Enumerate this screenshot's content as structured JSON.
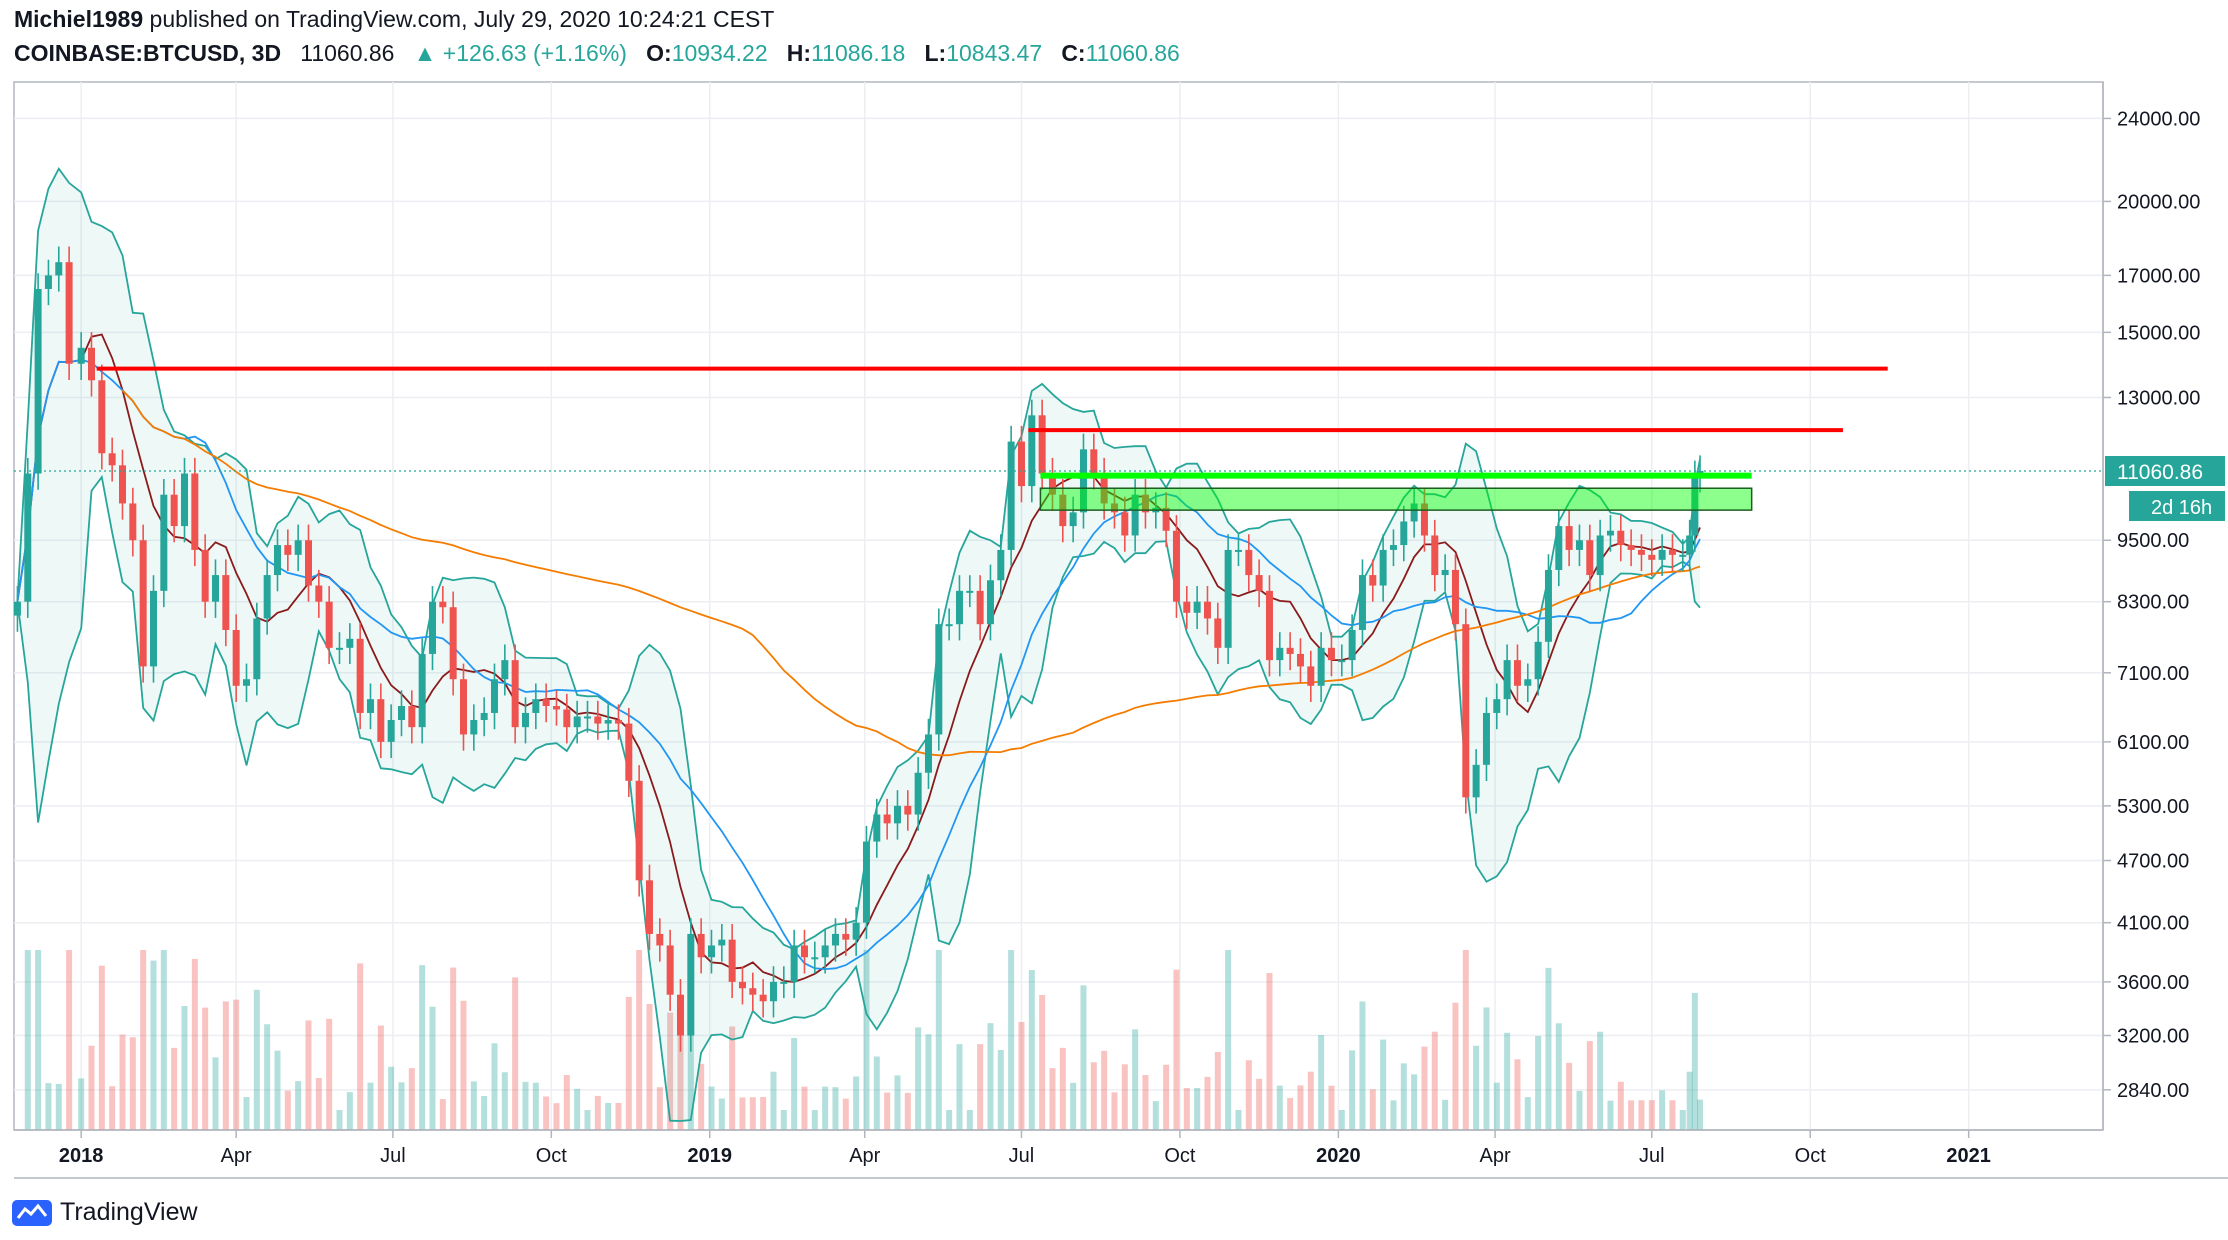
{
  "header": {
    "author": "Michiel1989",
    "published_text": "published on TradingView.com, July 29, 2020 10:24:21 CEST",
    "symbol": "COINBASE:BTCUSD, 3D",
    "last": "11060.86",
    "change": "▲ +126.63 (+1.16%)",
    "o_label": "O:",
    "o_value": "10934.22",
    "h_label": "H:",
    "h_value": "11086.18",
    "l_label": "L:",
    "l_value": "10843.47",
    "c_label": "C:",
    "c_value": "11060.86"
  },
  "footer": {
    "brand": "TradingView"
  },
  "colors": {
    "up": "#26a69a",
    "down": "#ef5350",
    "ma_short": "#8b1a1a",
    "ma_mid": "#2196f3",
    "ma_long": "#f57c00",
    "bollinger": "#26a69a",
    "resistance": "#ff0000",
    "support_zone": "#00ff00"
  },
  "chart_data": {
    "type": "candlestick",
    "symbol": "COINBASE:BTCUSD",
    "interval": "3D",
    "price_scale": "log",
    "y_ticks": [
      2840,
      3200,
      3600,
      4100,
      4700,
      5300,
      6100,
      7100,
      8300,
      9500,
      11060.86,
      13000,
      15000,
      17000,
      20000,
      24000
    ],
    "y_tick_labels": [
      "2840.00",
      "3200.00",
      "3600.00",
      "4100.00",
      "4700.00",
      "5300.00",
      "6100.00",
      "7100.00",
      "8300.00",
      "9500.00",
      "11060.86",
      "13000.00",
      "15000.00",
      "17000.00",
      "20000.00",
      "24000.00"
    ],
    "price_label": "11060.86",
    "countdown_label": "2d 16h",
    "x_ticks": [
      {
        "date": "2018-01-01",
        "label": "2018",
        "bold": true
      },
      {
        "date": "2018-04-01",
        "label": "Apr",
        "bold": false
      },
      {
        "date": "2018-07-01",
        "label": "Jul",
        "bold": false
      },
      {
        "date": "2018-10-01",
        "label": "Oct",
        "bold": false
      },
      {
        "date": "2019-01-01",
        "label": "2019",
        "bold": true
      },
      {
        "date": "2019-04-01",
        "label": "Apr",
        "bold": false
      },
      {
        "date": "2019-07-01",
        "label": "Jul",
        "bold": false
      },
      {
        "date": "2019-10-01",
        "label": "Oct",
        "bold": false
      },
      {
        "date": "2020-01-01",
        "label": "2020",
        "bold": true
      },
      {
        "date": "2020-04-01",
        "label": "Apr",
        "bold": false
      },
      {
        "date": "2020-07-01",
        "label": "Jul",
        "bold": false
      },
      {
        "date": "2020-10-01",
        "label": "Oct",
        "bold": false
      },
      {
        "date": "2021-01-01",
        "label": "2021",
        "bold": true
      }
    ],
    "x_range": [
      "2017-11-23",
      "2021-03-20"
    ],
    "y_range": [
      2600,
      26000
    ],
    "grid": true,
    "close_series": [
      [
        "2017-11-25",
        8300
      ],
      [
        "2017-12-01",
        11000
      ],
      [
        "2017-12-07",
        16500
      ],
      [
        "2017-12-13",
        17000
      ],
      [
        "2017-12-19",
        17500
      ],
      [
        "2017-12-25",
        14000
      ],
      [
        "2018-01-01",
        14500
      ],
      [
        "2018-01-07",
        13500
      ],
      [
        "2018-01-13",
        11500
      ],
      [
        "2018-01-19",
        11200
      ],
      [
        "2018-01-25",
        10300
      ],
      [
        "2018-01-31",
        9500
      ],
      [
        "2018-02-06",
        7200
      ],
      [
        "2018-02-12",
        8500
      ],
      [
        "2018-02-18",
        10500
      ],
      [
        "2018-02-24",
        9800
      ],
      [
        "2018-03-02",
        11000
      ],
      [
        "2018-03-08",
        9300
      ],
      [
        "2018-03-14",
        8300
      ],
      [
        "2018-03-20",
        8800
      ],
      [
        "2018-03-26",
        7800
      ],
      [
        "2018-04-01",
        6900
      ],
      [
        "2018-04-07",
        7000
      ],
      [
        "2018-04-13",
        8000
      ],
      [
        "2018-04-19",
        8800
      ],
      [
        "2018-04-25",
        9400
      ],
      [
        "2018-05-01",
        9200
      ],
      [
        "2018-05-07",
        9500
      ],
      [
        "2018-05-13",
        8600
      ],
      [
        "2018-05-19",
        8300
      ],
      [
        "2018-05-25",
        7500
      ],
      [
        "2018-05-31",
        7500
      ],
      [
        "2018-06-06",
        7650
      ],
      [
        "2018-06-12",
        6500
      ],
      [
        "2018-06-18",
        6700
      ],
      [
        "2018-06-24",
        6100
      ],
      [
        "2018-06-30",
        6400
      ],
      [
        "2018-07-06",
        6600
      ],
      [
        "2018-07-12",
        6300
      ],
      [
        "2018-07-18",
        7400
      ],
      [
        "2018-07-24",
        8300
      ],
      [
        "2018-07-30",
        8200
      ],
      [
        "2018-08-05",
        7000
      ],
      [
        "2018-08-11",
        6200
      ],
      [
        "2018-08-17",
        6400
      ],
      [
        "2018-08-23",
        6500
      ],
      [
        "2018-08-29",
        7000
      ],
      [
        "2018-09-04",
        7300
      ],
      [
        "2018-09-10",
        6300
      ],
      [
        "2018-09-16",
        6500
      ],
      [
        "2018-09-22",
        6700
      ],
      [
        "2018-09-28",
        6600
      ],
      [
        "2018-10-04",
        6550
      ],
      [
        "2018-10-10",
        6300
      ],
      [
        "2018-10-16",
        6450
      ],
      [
        "2018-10-22",
        6450
      ],
      [
        "2018-10-28",
        6350
      ],
      [
        "2018-11-03",
        6400
      ],
      [
        "2018-11-09",
        6350
      ],
      [
        "2018-11-15",
        5600
      ],
      [
        "2018-11-21",
        4500
      ],
      [
        "2018-11-27",
        4000
      ],
      [
        "2018-12-03",
        3900
      ],
      [
        "2018-12-09",
        3500
      ],
      [
        "2018-12-15",
        3200
      ],
      [
        "2018-12-21",
        4000
      ],
      [
        "2018-12-27",
        3800
      ],
      [
        "2019-01-02",
        3900
      ],
      [
        "2019-01-08",
        3950
      ],
      [
        "2019-01-14",
        3600
      ],
      [
        "2019-01-20",
        3550
      ],
      [
        "2019-01-26",
        3500
      ],
      [
        "2019-02-01",
        3450
      ],
      [
        "2019-02-07",
        3600
      ],
      [
        "2019-02-13",
        3600
      ],
      [
        "2019-02-19",
        3900
      ],
      [
        "2019-02-25",
        3800
      ],
      [
        "2019-03-03",
        3800
      ],
      [
        "2019-03-09",
        3900
      ],
      [
        "2019-03-15",
        4000
      ],
      [
        "2019-03-21",
        3950
      ],
      [
        "2019-03-27",
        4100
      ],
      [
        "2019-04-02",
        4900
      ],
      [
        "2019-04-08",
        5200
      ],
      [
        "2019-04-14",
        5100
      ],
      [
        "2019-04-20",
        5300
      ],
      [
        "2019-04-26",
        5200
      ],
      [
        "2019-05-02",
        5700
      ],
      [
        "2019-05-08",
        6200
      ],
      [
        "2019-05-14",
        7900
      ],
      [
        "2019-05-20",
        7900
      ],
      [
        "2019-05-26",
        8500
      ],
      [
        "2019-06-01",
        8500
      ],
      [
        "2019-06-07",
        7900
      ],
      [
        "2019-06-13",
        8700
      ],
      [
        "2019-06-19",
        9300
      ],
      [
        "2019-06-25",
        11800
      ],
      [
        "2019-07-01",
        10700
      ],
      [
        "2019-07-07",
        12500
      ],
      [
        "2019-07-13",
        11000
      ],
      [
        "2019-07-19",
        10500
      ],
      [
        "2019-07-25",
        9800
      ],
      [
        "2019-07-31",
        10100
      ],
      [
        "2019-08-06",
        11600
      ],
      [
        "2019-08-12",
        11000
      ],
      [
        "2019-08-18",
        10300
      ],
      [
        "2019-08-24",
        10100
      ],
      [
        "2019-08-30",
        9600
      ],
      [
        "2019-09-05",
        10500
      ],
      [
        "2019-09-11",
        10100
      ],
      [
        "2019-09-17",
        10200
      ],
      [
        "2019-09-23",
        9700
      ],
      [
        "2019-09-29",
        8300
      ],
      [
        "2019-10-05",
        8100
      ],
      [
        "2019-10-11",
        8300
      ],
      [
        "2019-10-17",
        8000
      ],
      [
        "2019-10-23",
        7500
      ],
      [
        "2019-10-29",
        9300
      ],
      [
        "2019-11-04",
        9300
      ],
      [
        "2019-11-10",
        8800
      ],
      [
        "2019-11-16",
        8500
      ],
      [
        "2019-11-22",
        7300
      ],
      [
        "2019-11-28",
        7500
      ],
      [
        "2019-12-04",
        7400
      ],
      [
        "2019-12-10",
        7200
      ],
      [
        "2019-12-16",
        6900
      ],
      [
        "2019-12-22",
        7500
      ],
      [
        "2019-12-28",
        7300
      ],
      [
        "2020-01-03",
        7300
      ],
      [
        "2020-01-09",
        7800
      ],
      [
        "2020-01-15",
        8800
      ],
      [
        "2020-01-21",
        8600
      ],
      [
        "2020-01-27",
        9300
      ],
      [
        "2020-02-02",
        9400
      ],
      [
        "2020-02-08",
        9900
      ],
      [
        "2020-02-14",
        10300
      ],
      [
        "2020-02-20",
        9600
      ],
      [
        "2020-02-26",
        8800
      ],
      [
        "2020-03-03",
        8900
      ],
      [
        "2020-03-09",
        7900
      ],
      [
        "2020-03-15",
        5400
      ],
      [
        "2020-03-21",
        5800
      ],
      [
        "2020-03-27",
        6500
      ],
      [
        "2020-04-02",
        6700
      ],
      [
        "2020-04-08",
        7300
      ],
      [
        "2020-04-14",
        6900
      ],
      [
        "2020-04-20",
        7000
      ],
      [
        "2020-04-26",
        7600
      ],
      [
        "2020-05-02",
        8900
      ],
      [
        "2020-05-08",
        9800
      ],
      [
        "2020-05-14",
        9300
      ],
      [
        "2020-05-20",
        9500
      ],
      [
        "2020-05-26",
        8800
      ],
      [
        "2020-06-01",
        9600
      ],
      [
        "2020-06-07",
        9700
      ],
      [
        "2020-06-13",
        9400
      ],
      [
        "2020-06-19",
        9300
      ],
      [
        "2020-06-25",
        9200
      ],
      [
        "2020-07-01",
        9100
      ],
      [
        "2020-07-07",
        9300
      ],
      [
        "2020-07-13",
        9200
      ],
      [
        "2020-07-19",
        9200
      ],
      [
        "2020-07-23",
        9600
      ],
      [
        "2020-07-26",
        10934
      ],
      [
        "2020-07-29",
        11060.86
      ]
    ],
    "horizontal_levels": [
      {
        "kind": "resistance",
        "price": 13850,
        "from": "2018-01-10",
        "to": "2020-11-15"
      },
      {
        "kind": "resistance",
        "price": 12100,
        "from": "2019-07-05",
        "to": "2020-10-20"
      },
      {
        "kind": "support_line",
        "price": 10950,
        "from": "2019-07-12",
        "to": "2020-08-28"
      },
      {
        "kind": "support_zone",
        "price_low": 10150,
        "price_high": 10650,
        "from": "2019-07-12",
        "to": "2020-08-28"
      }
    ]
  }
}
